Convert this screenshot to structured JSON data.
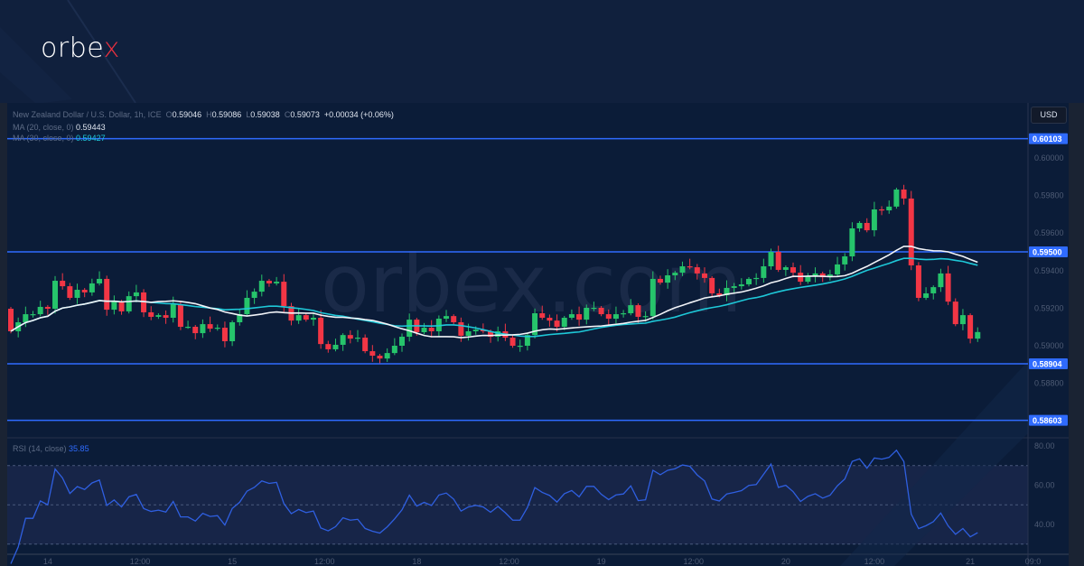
{
  "brand": {
    "logo_main": "orbe",
    "logo_accent": "x",
    "watermark": "orbex.com"
  },
  "legend": {
    "symbol": "New Zealand Dollar / U.S. Dollar, 1h, ICE",
    "o_label": "O",
    "o": "0.59046",
    "h_label": "H",
    "h": "0.59086",
    "l_label": "L",
    "l": "0.59038",
    "c_label": "C",
    "c": "0.59073",
    "change": "+0.00034 (+0.06%)",
    "ma20_label": "MA (20, close, 0)",
    "ma20": "0.59443",
    "ma30_label": "MA (30, close, 0)",
    "ma30": "0.59427",
    "rsi_label": "RSI (14, close)",
    "rsi": "35.85"
  },
  "currency_button": "USD",
  "colors": {
    "up": "#26c46b",
    "down": "#f23645",
    "ma20": "#f2f4f8",
    "ma30": "#1ec8d8",
    "levels": "#2f6bff",
    "rsi": "#2f5fe0"
  },
  "chart_data": {
    "type": "candlestick",
    "title": "New Zealand Dollar / U.S. Dollar, 1h",
    "first_open": 0.59197,
    "closes": [
      0.59077,
      0.59125,
      0.59168,
      0.59168,
      0.59207,
      0.59197,
      0.59346,
      0.59317,
      0.59255,
      0.59298,
      0.59284,
      0.59332,
      0.59356,
      0.59192,
      0.59235,
      0.59183,
      0.59264,
      0.59284,
      0.59178,
      0.59154,
      0.59163,
      0.59149,
      0.59221,
      0.59101,
      0.59101,
      0.59067,
      0.59115,
      0.59091,
      0.59096,
      0.59024,
      0.59125,
      0.59168,
      0.59255,
      0.59288,
      0.59346,
      0.59332,
      0.59341,
      0.59211,
      0.59134,
      0.59163,
      0.59139,
      0.59149,
      0.59009,
      0.58981,
      0.59005,
      0.59057,
      0.59038,
      0.59043,
      0.58971,
      0.58947,
      0.58932,
      0.58961,
      0.59,
      0.59048,
      0.59139,
      0.59072,
      0.59096,
      0.59077,
      0.59144,
      0.59158,
      0.59125,
      0.59053,
      0.59077,
      0.59086,
      0.59077,
      0.59048,
      0.59077,
      0.59043,
      0.59,
      0.59,
      0.59057,
      0.59173,
      0.59149,
      0.59134,
      0.59101,
      0.59149,
      0.59168,
      0.59139,
      0.59202,
      0.59202,
      0.59168,
      0.59144,
      0.59168,
      0.59173,
      0.59216,
      0.59154,
      0.59158,
      0.59356,
      0.59336,
      0.59375,
      0.59389,
      0.59423,
      0.59418,
      0.59385,
      0.59361,
      0.59279,
      0.59269,
      0.59308,
      0.59317,
      0.59327,
      0.59356,
      0.59361,
      0.59423,
      0.595,
      0.59404,
      0.59418,
      0.59389,
      0.59341,
      0.5937,
      0.59385,
      0.59365,
      0.5938,
      0.59433,
      0.59476,
      0.59625,
      0.59654,
      0.59615,
      0.59726,
      0.59721,
      0.59741,
      0.59832,
      0.59784,
      0.59428,
      0.59255,
      0.59279,
      0.59312,
      0.59385,
      0.59235,
      0.59115,
      0.59163,
      0.59038,
      0.59073
    ],
    "y_ticks": [
      "0.60000",
      "0.59800",
      "0.59600",
      "0.59400",
      "0.59200",
      "0.59000",
      "0.58800"
    ],
    "ylim": [
      0.5854,
      0.603
    ],
    "levels": [
      {
        "value": 0.60103,
        "label": "0.60103"
      },
      {
        "value": 0.595,
        "label": "0.59500"
      },
      {
        "value": 0.58904,
        "label": "0.58904"
      },
      {
        "value": 0.58603,
        "label": "0.58603"
      }
    ],
    "ma_periods": [
      20,
      30
    ],
    "rsi_period": 14,
    "rsi_ticks": [
      "80.00",
      "60.00",
      "40.00"
    ],
    "rsi_band": [
      30,
      70
    ],
    "x_ticks": [
      {
        "label": "14",
        "index": 5
      },
      {
        "label": "12:00",
        "index": 17.5
      },
      {
        "label": "15",
        "index": 30
      },
      {
        "label": "12:00",
        "index": 42.5
      },
      {
        "label": "18",
        "index": 55
      },
      {
        "label": "12:00",
        "index": 67.5
      },
      {
        "label": "19",
        "index": 80
      },
      {
        "label": "12:00",
        "index": 92.5
      },
      {
        "label": "20",
        "index": 105
      },
      {
        "label": "12:00",
        "index": 117
      },
      {
        "label": "21",
        "index": 130
      },
      {
        "label": "09:0",
        "index": 138.5
      }
    ]
  }
}
